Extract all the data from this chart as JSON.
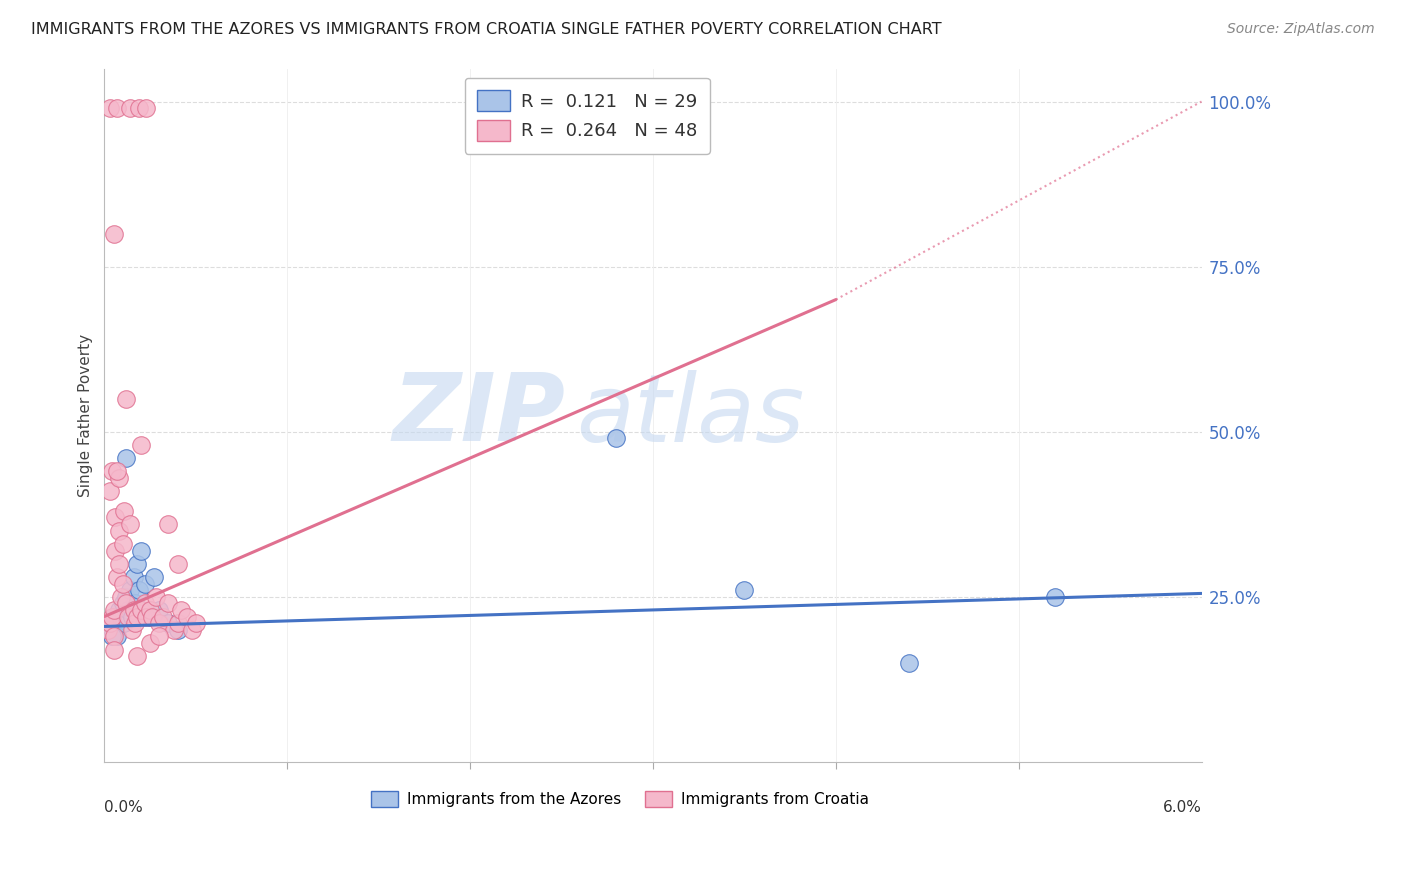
{
  "title": "IMMIGRANTS FROM THE AZORES VS IMMIGRANTS FROM CROATIA SINGLE FATHER POVERTY CORRELATION CHART",
  "source": "Source: ZipAtlas.com",
  "ylabel": "Single Father Poverty",
  "watermark_zip": "ZIP",
  "watermark_atlas": "atlas",
  "azores_color": "#aac4e8",
  "croatia_color": "#f5b8cb",
  "azores_line_color": "#4472c4",
  "croatia_line_color": "#e07090",
  "azores_scatter": [
    [
      0.0003,
      0.21
    ],
    [
      0.0005,
      0.22
    ],
    [
      0.0006,
      0.2
    ],
    [
      0.0007,
      0.19
    ],
    [
      0.0008,
      0.23
    ],
    [
      0.0009,
      0.22
    ],
    [
      0.001,
      0.24
    ],
    [
      0.0011,
      0.21
    ],
    [
      0.0012,
      0.25
    ],
    [
      0.0013,
      0.23
    ],
    [
      0.0014,
      0.26
    ],
    [
      0.0015,
      0.22
    ],
    [
      0.0016,
      0.28
    ],
    [
      0.0017,
      0.24
    ],
    [
      0.0018,
      0.3
    ],
    [
      0.0004,
      0.19
    ],
    [
      0.0019,
      0.26
    ],
    [
      0.002,
      0.32
    ],
    [
      0.0022,
      0.27
    ],
    [
      0.0025,
      0.22
    ],
    [
      0.0027,
      0.28
    ],
    [
      0.003,
      0.23
    ],
    [
      0.0035,
      0.21
    ],
    [
      0.004,
      0.2
    ],
    [
      0.0012,
      0.46
    ],
    [
      0.028,
      0.49
    ],
    [
      0.035,
      0.26
    ],
    [
      0.052,
      0.25
    ],
    [
      0.044,
      0.15
    ]
  ],
  "croatia_scatter": [
    [
      0.0002,
      0.2
    ],
    [
      0.0003,
      0.21
    ],
    [
      0.0004,
      0.22
    ],
    [
      0.0005,
      0.23
    ],
    [
      0.0005,
      0.19
    ],
    [
      0.0006,
      0.32
    ],
    [
      0.0006,
      0.37
    ],
    [
      0.0007,
      0.28
    ],
    [
      0.0008,
      0.35
    ],
    [
      0.0008,
      0.3
    ],
    [
      0.0009,
      0.25
    ],
    [
      0.001,
      0.27
    ],
    [
      0.001,
      0.33
    ],
    [
      0.0011,
      0.38
    ],
    [
      0.0012,
      0.24
    ],
    [
      0.0013,
      0.22
    ],
    [
      0.0014,
      0.36
    ],
    [
      0.0015,
      0.2
    ],
    [
      0.0016,
      0.23
    ],
    [
      0.0017,
      0.21
    ],
    [
      0.0018,
      0.22
    ],
    [
      0.002,
      0.23
    ],
    [
      0.0022,
      0.24
    ],
    [
      0.0023,
      0.22
    ],
    [
      0.0025,
      0.23
    ],
    [
      0.0026,
      0.22
    ],
    [
      0.0028,
      0.25
    ],
    [
      0.003,
      0.21
    ],
    [
      0.0032,
      0.22
    ],
    [
      0.0035,
      0.24
    ],
    [
      0.0038,
      0.2
    ],
    [
      0.004,
      0.21
    ],
    [
      0.0042,
      0.23
    ],
    [
      0.0045,
      0.22
    ],
    [
      0.0048,
      0.2
    ],
    [
      0.005,
      0.21
    ],
    [
      0.0004,
      0.44
    ],
    [
      0.0003,
      0.41
    ],
    [
      0.0008,
      0.43
    ],
    [
      0.0012,
      0.55
    ],
    [
      0.002,
      0.48
    ],
    [
      0.0005,
      0.17
    ],
    [
      0.0018,
      0.16
    ],
    [
      0.0025,
      0.18
    ],
    [
      0.0035,
      0.36
    ],
    [
      0.004,
      0.3
    ],
    [
      0.003,
      0.19
    ],
    [
      0.0007,
      0.44
    ]
  ],
  "croatia_top_scatter": [
    [
      0.0003,
      0.99
    ],
    [
      0.0007,
      0.99
    ],
    [
      0.0014,
      0.99
    ],
    [
      0.0019,
      0.99
    ],
    [
      0.0023,
      0.99
    ]
  ],
  "croatia_high_scatter": [
    [
      0.0005,
      0.8
    ]
  ],
  "xlim": [
    0.0,
    0.06
  ],
  "ylim": [
    0.0,
    1.05
  ],
  "right_yticks": [
    0.25,
    0.5,
    0.75,
    1.0
  ],
  "right_yticklabels": [
    "25.0%",
    "50.0%",
    "75.0%",
    "100.0%"
  ],
  "azores_regline": [
    0.0,
    0.06,
    0.205,
    0.255
  ],
  "croatia_regline": [
    0.0,
    0.04,
    0.22,
    0.7
  ],
  "croatia_dotted_ext": [
    0.04,
    0.06,
    0.7,
    1.0
  ]
}
